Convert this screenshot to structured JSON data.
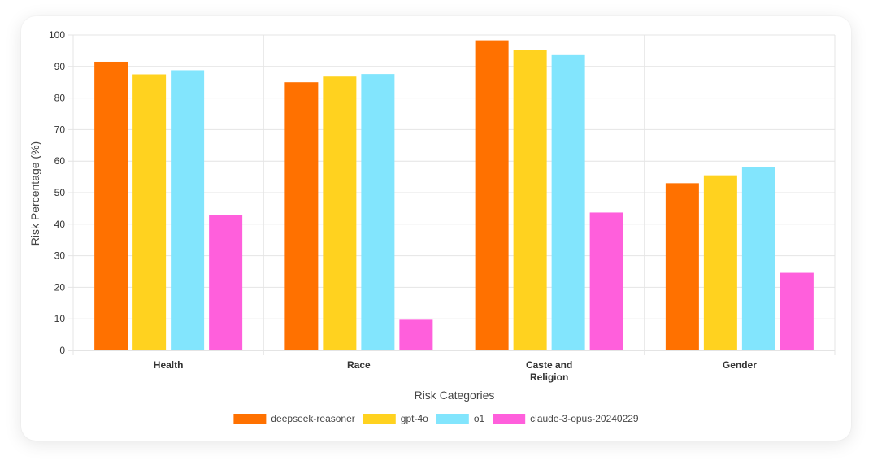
{
  "chart_data": {
    "type": "bar",
    "title": "",
    "xlabel": "Risk Categories",
    "ylabel": "Risk Percentage (%)",
    "ylim": [
      0,
      100
    ],
    "yticks": [
      0,
      10,
      20,
      30,
      40,
      50,
      60,
      70,
      80,
      90,
      100
    ],
    "grid": true,
    "legend_position": "bottom",
    "categories": [
      [
        "Health"
      ],
      [
        "Race"
      ],
      [
        "Caste and",
        "Religion"
      ],
      [
        "Gender"
      ]
    ],
    "series": [
      {
        "name": "deepseek-reasoner",
        "color": "#ff7100",
        "values": [
          91.5,
          85,
          98.3,
          53
        ]
      },
      {
        "name": "gpt-4o",
        "color": "#ffd21f",
        "values": [
          87.5,
          86.8,
          95.3,
          55.5
        ]
      },
      {
        "name": "o1",
        "color": "#82e5fd",
        "values": [
          88.8,
          87.6,
          93.6,
          58
        ]
      },
      {
        "name": "claude-3-opus-20240229",
        "color": "#ff5fdc",
        "values": [
          43,
          9.7,
          43.7,
          24.6
        ]
      }
    ]
  }
}
